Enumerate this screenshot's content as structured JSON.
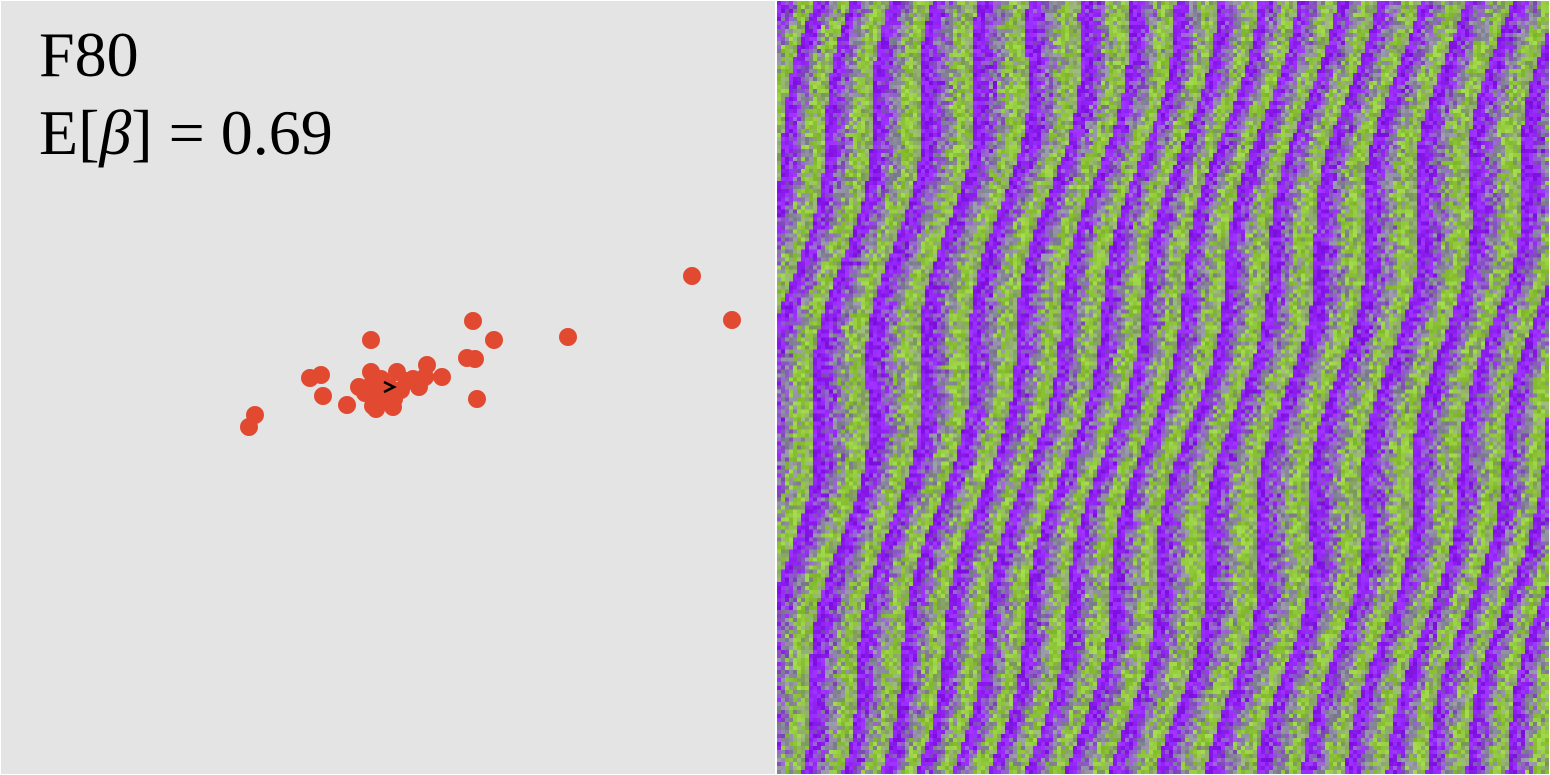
{
  "header": {
    "frame_label": "F80",
    "beta_prefix": "E[",
    "beta_symbol": "β",
    "beta_suffix": "] = ",
    "beta_value": "0.69"
  },
  "colors": {
    "panel_bg": "#e4e4e4",
    "point": "#e14a30",
    "arrow": "#000000",
    "pattern_green": "#92c83c",
    "pattern_purple": "#8f22f0",
    "pattern_gray": "#8a8a9c"
  },
  "chart_data": {
    "type": "scatter",
    "title": "",
    "xlabel": "",
    "ylabel": "",
    "grid": false,
    "legend": "none",
    "xlim": [
      0,
      774
    ],
    "ylim": [
      0,
      773
    ],
    "points": [
      [
        248,
        426
      ],
      [
        254,
        414
      ],
      [
        309,
        377
      ],
      [
        320,
        374
      ],
      [
        322,
        395
      ],
      [
        346,
        404
      ],
      [
        358,
        386
      ],
      [
        364,
        392
      ],
      [
        370,
        339
      ],
      [
        370,
        371
      ],
      [
        372,
        381
      ],
      [
        375,
        395
      ],
      [
        378,
        400
      ],
      [
        372,
        405
      ],
      [
        375,
        408
      ],
      [
        380,
        378
      ],
      [
        384,
        390
      ],
      [
        388,
        386
      ],
      [
        393,
        398
      ],
      [
        392,
        406
      ],
      [
        396,
        371
      ],
      [
        400,
        389
      ],
      [
        406,
        380
      ],
      [
        412,
        378
      ],
      [
        418,
        386
      ],
      [
        424,
        376
      ],
      [
        426,
        364
      ],
      [
        441,
        376
      ],
      [
        466,
        357
      ],
      [
        474,
        358
      ],
      [
        472,
        320
      ],
      [
        493,
        339
      ],
      [
        476,
        398
      ],
      [
        567,
        336
      ],
      [
        691,
        275
      ],
      [
        731,
        319
      ]
    ],
    "heading_marker": {
      "x": 389,
      "y": 386,
      "direction": "right"
    }
  },
  "pattern": {
    "description_icon": "stripe-pattern-image",
    "stripe_count": 18
  }
}
